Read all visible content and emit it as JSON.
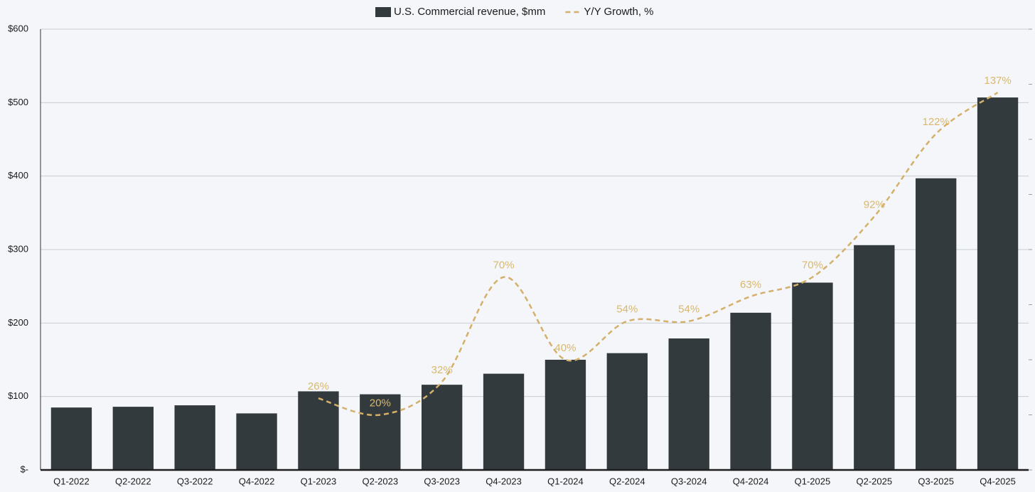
{
  "chart_data": {
    "type": "bar",
    "categories": [
      "Q1-2022",
      "Q2-2022",
      "Q3-2022",
      "Q4-2022",
      "Q1-2023",
      "Q2-2023",
      "Q3-2023",
      "Q4-2023",
      "Q1-2024",
      "Q2-2024",
      "Q3-2024",
      "Q4-2024",
      "Q1-2025",
      "Q2-2025",
      "Q3-2025",
      "Q4-2025"
    ],
    "series": [
      {
        "name": "U.S. Commercial revenue, $mm",
        "type": "bar",
        "color": "#323a3d",
        "values": [
          85,
          86,
          88,
          77,
          107,
          103,
          116,
          131,
          150,
          159,
          179,
          214,
          255,
          306,
          397,
          507
        ]
      },
      {
        "name": "Y/Y Growth, %",
        "type": "line",
        "axis": "y2",
        "color": "#d4b06a",
        "dashed": true,
        "smooth": true,
        "values": [
          null,
          null,
          null,
          null,
          26,
          20,
          32,
          70,
          40,
          54,
          54,
          63,
          70,
          92,
          122,
          137
        ],
        "value_labels": [
          null,
          null,
          null,
          null,
          "26%",
          "20%",
          "32%",
          "70%",
          "40%",
          "54%",
          "54%",
          "63%",
          "70%",
          "92%",
          "122%",
          "137%"
        ]
      }
    ],
    "ylim": [
      0,
      600
    ],
    "yticks": [
      {
        "value": 0,
        "label": "$-"
      },
      {
        "value": 100,
        "label": "$100"
      },
      {
        "value": 200,
        "label": "$200"
      },
      {
        "value": 300,
        "label": "$300"
      },
      {
        "value": 400,
        "label": "$400"
      },
      {
        "value": 500,
        "label": "$500"
      },
      {
        "value": 600,
        "label": "$600"
      }
    ],
    "y2lim": [
      0,
      160
    ],
    "y2ticks": [
      0,
      20,
      40,
      60,
      80,
      100,
      120,
      140,
      160
    ],
    "grid": true,
    "legend": "top"
  }
}
